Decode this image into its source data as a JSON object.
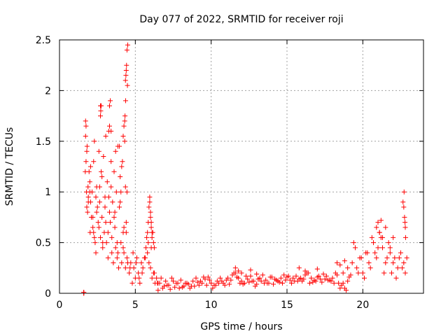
{
  "colors": {
    "series": "#ff0000",
    "grid": "#a0a0a0",
    "axis": "#000000"
  },
  "chart_data": {
    "type": "scatter",
    "title": "Day 077 of 2022, SRMTID for receiver roji",
    "xlabel": "GPS time / hours",
    "ylabel": "SRMTID / TECUs",
    "xlim": [
      0,
      24
    ],
    "ylim": [
      0,
      2.5
    ],
    "xticks": [
      0,
      5,
      10,
      15,
      20
    ],
    "xtick_labels": [
      "0",
      "5",
      "10",
      "15",
      "20"
    ],
    "yticks": [
      0,
      0.5,
      1,
      1.5,
      2,
      2.5
    ],
    "ytick_labels": [
      "0",
      "0.5",
      "1",
      "1.5",
      "2",
      "2.5"
    ],
    "grid": true,
    "marker": "plus",
    "series": [
      {
        "name": "SRMTID",
        "x": [
          1.6,
          1.6,
          1.6,
          1.6,
          1.7,
          1.72,
          1.75,
          1.78,
          1.8,
          1.82,
          1.85,
          1.88,
          1.9,
          1.95,
          2.0,
          2.02,
          2.05,
          2.1,
          2.15,
          2.2,
          2.25,
          2.3,
          2.35,
          2.4,
          2.45,
          2.5,
          2.55,
          2.6,
          2.65,
          2.7,
          2.75,
          2.8,
          2.85,
          2.9,
          2.95,
          3.0,
          3.05,
          3.1,
          3.15,
          3.2,
          3.25,
          3.3,
          3.35,
          3.4,
          3.45,
          3.5,
          3.55,
          3.6,
          3.65,
          3.7,
          3.75,
          3.8,
          3.85,
          3.9,
          3.95,
          4.0,
          4.05,
          4.1,
          4.15,
          4.2,
          4.25,
          4.3,
          4.35,
          4.4,
          4.45,
          4.5,
          1.75,
          1.9,
          2.05,
          2.25,
          2.45,
          2.65,
          2.85,
          3.05,
          3.25,
          3.45,
          3.65,
          3.85,
          4.05,
          4.25,
          4.45,
          1.8,
          2.0,
          2.2,
          2.4,
          2.6,
          2.8,
          3.0,
          3.2,
          3.4,
          3.6,
          3.8,
          4.0,
          4.2,
          4.4,
          1.72,
          2.3,
          2.7,
          3.3,
          3.7,
          4.1,
          4.35,
          2.7,
          2.72,
          2.75,
          3.3,
          3.35,
          3.4,
          3.95,
          4.2,
          4.25,
          4.3,
          4.32,
          4.35,
          4.38,
          4.4,
          4.42,
          4.45,
          4.5,
          4.48,
          4.36,
          4.6,
          4.7,
          4.8,
          4.9,
          5.0,
          5.1,
          5.2,
          5.3,
          5.4,
          5.5,
          5.6,
          5.7,
          5.8,
          5.9,
          6.0,
          6.1,
          6.2,
          6.3,
          6.4,
          6.5,
          4.65,
          4.85,
          5.05,
          5.25,
          5.45,
          5.65,
          5.85,
          6.05,
          6.25,
          6.45,
          5.8,
          5.85,
          5.9,
          5.95,
          6.0,
          6.05,
          6.1,
          6.15,
          6.2,
          5.75,
          6.25,
          5.95,
          6.0,
          6.05,
          6.1,
          6.6,
          6.8,
          7.0,
          7.2,
          7.4,
          7.6,
          7.8,
          8.0,
          8.2,
          8.4,
          8.6,
          8.8,
          9.0,
          9.2,
          9.4,
          9.6,
          9.8,
          10.0,
          10.2,
          10.4,
          10.6,
          10.8,
          11.0,
          11.2,
          11.4,
          11.6,
          11.8,
          12.0,
          12.2,
          12.4,
          12.6,
          12.8,
          13.0,
          13.2,
          13.4,
          13.6,
          13.8,
          14.0,
          14.2,
          14.4,
          14.6,
          14.8,
          15.0,
          15.2,
          15.4,
          15.6,
          15.8,
          16.0,
          16.2,
          16.4,
          16.6,
          16.8,
          17.0,
          17.2,
          17.4,
          17.6,
          17.8,
          18.0,
          18.2,
          18.4,
          18.6,
          18.8,
          19.0,
          19.2,
          6.7,
          7.1,
          7.5,
          7.9,
          8.3,
          8.7,
          9.1,
          9.5,
          9.9,
          10.3,
          10.7,
          11.1,
          11.5,
          11.9,
          12.3,
          12.7,
          13.1,
          13.5,
          13.9,
          14.3,
          14.7,
          15.1,
          15.5,
          15.9,
          16.3,
          16.7,
          17.1,
          17.5,
          17.9,
          18.3,
          18.7,
          19.1,
          6.5,
          6.9,
          7.3,
          7.7,
          8.1,
          8.5,
          8.9,
          9.3,
          9.7,
          10.1,
          10.5,
          10.9,
          11.3,
          11.7,
          12.1,
          12.5,
          12.9,
          13.3,
          13.7,
          14.1,
          14.5,
          14.9,
          15.3,
          15.7,
          16.1,
          16.5,
          16.9,
          17.3,
          17.7,
          18.1,
          18.5,
          18.9,
          11.6,
          11.8,
          12.0,
          12.6,
          13.0,
          15.8,
          16.2,
          17.0,
          18.3,
          18.5,
          18.8,
          19.0,
          18.7,
          19.3,
          19.5,
          19.7,
          19.9,
          20.1,
          20.3,
          20.5,
          20.7,
          20.9,
          21.1,
          21.3,
          21.5,
          21.7,
          21.9,
          22.1,
          22.3,
          22.5,
          22.7,
          22.9,
          19.4,
          19.8,
          20.2,
          20.6,
          21.0,
          21.4,
          21.8,
          22.2,
          22.6,
          19.6,
          20.0,
          20.4,
          20.8,
          21.2,
          21.6,
          22.0,
          22.4,
          22.8,
          20.9,
          21.0,
          21.1,
          21.2,
          21.3,
          21.5,
          21.8,
          22.0,
          22.65,
          22.7,
          22.72,
          22.75,
          22.78,
          22.8,
          22.82
        ],
        "y": [
          0.0,
          0.01,
          0.0,
          0.01,
          1.2,
          1.55,
          1.3,
          1.0,
          0.85,
          1.45,
          0.8,
          1.05,
          0.95,
          1.2,
          1.1,
          0.6,
          0.9,
          0.75,
          1.0,
          0.65,
          1.3,
          0.55,
          0.5,
          0.4,
          1.05,
          0.85,
          0.7,
          1.4,
          0.9,
          0.55,
          1.2,
          0.75,
          0.45,
          1.35,
          0.6,
          0.95,
          1.55,
          0.5,
          1.1,
          0.35,
          1.6,
          0.8,
          0.7,
          1.3,
          0.4,
          0.9,
          0.3,
          1.2,
          0.65,
          0.45,
          1.0,
          0.35,
          1.45,
          0.25,
          0.85,
          1.15,
          0.5,
          0.3,
          1.3,
          0.6,
          0.4,
          1.5,
          0.25,
          0.7,
          1.0,
          0.3,
          1.65,
          0.9,
          1.25,
          0.6,
          0.8,
          1.05,
          0.5,
          0.7,
          0.95,
          0.55,
          0.8,
          0.4,
          1.0,
          0.65,
          0.35,
          1.4,
          1.0,
          0.75,
          0.95,
          0.65,
          1.15,
          0.85,
          0.6,
          1.05,
          0.75,
          0.5,
          0.9,
          0.45,
          0.6,
          1.7,
          1.5,
          1.85,
          1.65,
          1.4,
          1.25,
          1.05,
          1.75,
          1.8,
          1.85,
          1.85,
          1.9,
          1.6,
          1.45,
          1.55,
          1.65,
          1.7,
          1.75,
          2.1,
          2.15,
          2.2,
          2.25,
          2.4,
          2.45,
          2.05,
          1.9,
          0.2,
          0.3,
          0.1,
          0.25,
          0.15,
          0.35,
          0.2,
          0.1,
          0.3,
          0.25,
          0.35,
          0.45,
          0.4,
          0.3,
          0.25,
          0.15,
          0.2,
          0.1,
          0.15,
          0.1,
          0.25,
          0.4,
          0.3,
          0.15,
          0.2,
          0.35,
          0.5,
          0.45,
          0.2,
          0.1,
          0.6,
          0.7,
          0.85,
          0.9,
          0.75,
          0.65,
          0.55,
          0.6,
          0.5,
          0.55,
          0.45,
          0.95,
          0.8,
          0.7,
          0.6,
          0.1,
          0.05,
          0.12,
          0.08,
          0.15,
          0.06,
          0.1,
          0.13,
          0.07,
          0.1,
          0.05,
          0.12,
          0.15,
          0.08,
          0.1,
          0.14,
          0.16,
          0.1,
          0.08,
          0.12,
          0.15,
          0.1,
          0.13,
          0.09,
          0.18,
          0.2,
          0.15,
          0.12,
          0.1,
          0.14,
          0.17,
          0.12,
          0.09,
          0.15,
          0.18,
          0.13,
          0.1,
          0.16,
          0.14,
          0.12,
          0.15,
          0.18,
          0.16,
          0.13,
          0.15,
          0.17,
          0.14,
          0.12,
          0.18,
          0.2,
          0.15,
          0.13,
          0.16,
          0.14,
          0.19,
          0.17,
          0.13,
          0.15,
          0.2,
          0.1,
          0.08,
          0.05,
          0.12,
          0.18,
          0.15,
          0.08,
          0.12,
          0.05,
          0.1,
          0.07,
          0.11,
          0.16,
          0.13,
          0.08,
          0.12,
          0.15,
          0.2,
          0.1,
          0.17,
          0.12,
          0.14,
          0.1,
          0.16,
          0.13,
          0.1,
          0.17,
          0.12,
          0.15,
          0.2,
          0.11,
          0.17,
          0.14,
          0.12,
          0.18,
          0.1,
          0.16,
          0.03,
          0.07,
          0.04,
          0.1,
          0.06,
          0.09,
          0.07,
          0.12,
          0.08,
          0.05,
          0.1,
          0.08,
          0.13,
          0.16,
          0.09,
          0.11,
          0.07,
          0.12,
          0.1,
          0.09,
          0.11,
          0.13,
          0.1,
          0.12,
          0.14,
          0.1,
          0.12,
          0.11,
          0.13,
          0.1,
          0.05,
          0.03,
          0.25,
          0.22,
          0.2,
          0.23,
          0.19,
          0.25,
          0.22,
          0.24,
          0.3,
          0.28,
          0.32,
          0.25,
          0.2,
          0.3,
          0.45,
          0.2,
          0.35,
          0.15,
          0.4,
          0.25,
          0.5,
          0.35,
          0.6,
          0.45,
          0.3,
          0.5,
          0.2,
          0.35,
          0.25,
          0.4,
          0.3,
          0.35,
          0.5,
          0.35,
          0.4,
          0.55,
          0.45,
          0.2,
          0.4,
          0.15,
          0.25,
          0.25,
          0.2,
          0.3,
          0.4,
          0.55,
          0.35,
          0.3,
          0.35,
          0.2,
          0.65,
          0.7,
          0.6,
          0.72,
          0.55,
          0.65,
          0.45,
          0.55,
          0.9,
          0.85,
          1.0,
          0.75,
          0.7,
          0.65,
          0.55
        ]
      }
    ]
  }
}
